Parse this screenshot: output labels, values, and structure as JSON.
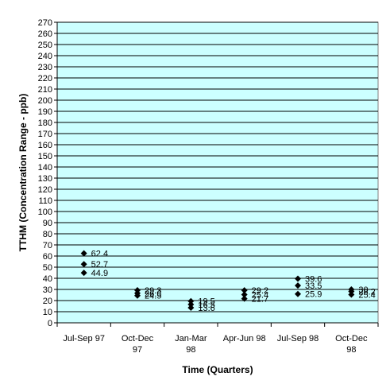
{
  "chart_data": {
    "type": "scatter",
    "title": "",
    "xlabel": "Time (Quarters)",
    "ylabel": "TTHM (Concentration Range - ppb)",
    "ylim": [
      0,
      270
    ],
    "ytick_step": 10,
    "grid": true,
    "legend": "none",
    "plot_background": "#ccffff",
    "marker_color": "#000000",
    "categories": [
      [
        "Jul-Sep 97"
      ],
      [
        "Oct-Dec",
        "97"
      ],
      [
        "Jan-Mar",
        "98"
      ],
      [
        "Apr-Jun 98"
      ],
      [
        "Jul-Sep 98"
      ],
      [
        "Oct-Dec",
        "98"
      ]
    ],
    "points": [
      {
        "category": 0,
        "values": [
          62.4,
          52.7,
          44.9
        ],
        "labels": [
          "62.4",
          "52.7",
          "44.9"
        ]
      },
      {
        "category": 1,
        "values": [
          29.3,
          26.6,
          24.5
        ],
        "labels": [
          "29.3",
          "26.6",
          "24.5"
        ]
      },
      {
        "category": 2,
        "values": [
          19.5,
          16.5,
          13.6
        ],
        "labels": [
          "19.5",
          "16.5",
          "13.6"
        ]
      },
      {
        "category": 3,
        "values": [
          29.2,
          25.4,
          21.7
        ],
        "labels": [
          "29.2",
          "25.4",
          "21.7"
        ]
      },
      {
        "category": 4,
        "values": [
          39.6,
          33.5,
          25.9
        ],
        "labels": [
          "39.6",
          "33.5",
          "25.9"
        ]
      },
      {
        "category": 5,
        "values": [
          30.0,
          28.2,
          25.4
        ],
        "labels": [
          "30",
          "28.2",
          "25.4"
        ]
      }
    ]
  }
}
